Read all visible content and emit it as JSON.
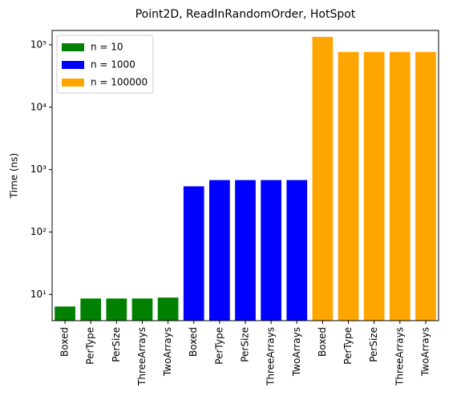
{
  "chart_data": {
    "type": "bar",
    "title": "Point2D, ReadInRandomOrder, HotSpot",
    "ylabel": "Time (ns)",
    "categories": [
      "Boxed",
      "PerType",
      "PerSize",
      "ThreeArrays",
      "TwoArrays",
      "Boxed",
      "PerType",
      "PerSize",
      "ThreeArrays",
      "TwoArrays",
      "Boxed",
      "PerType",
      "PerSize",
      "ThreeArrays",
      "TwoArrays"
    ],
    "series": [
      {
        "name": "n = 10",
        "color": "#008000",
        "values": [
          6.4,
          8.6,
          8.6,
          8.6,
          8.9,
          null,
          null,
          null,
          null,
          null,
          null,
          null,
          null,
          null,
          null
        ]
      },
      {
        "name": "n = 1000",
        "color": "#0000ff",
        "values": [
          null,
          null,
          null,
          null,
          null,
          540,
          680,
          680,
          680,
          680,
          null,
          null,
          null,
          null,
          null
        ]
      },
      {
        "name": "n = 100000",
        "color": "#ffa500",
        "values": [
          null,
          null,
          null,
          null,
          null,
          null,
          null,
          null,
          null,
          null,
          134000,
          77000,
          77000,
          77000,
          77000
        ]
      }
    ],
    "log_scale": true,
    "ylim": [
      3.8,
      170000
    ],
    "yticks": [
      {
        "value": 10,
        "label": "10¹"
      },
      {
        "value": 100,
        "label": "10²"
      },
      {
        "value": 1000,
        "label": "10³"
      },
      {
        "value": 10000,
        "label": "10⁴"
      },
      {
        "value": 100000,
        "label": "10⁵"
      }
    ],
    "grid": false,
    "legend": "upper left"
  }
}
